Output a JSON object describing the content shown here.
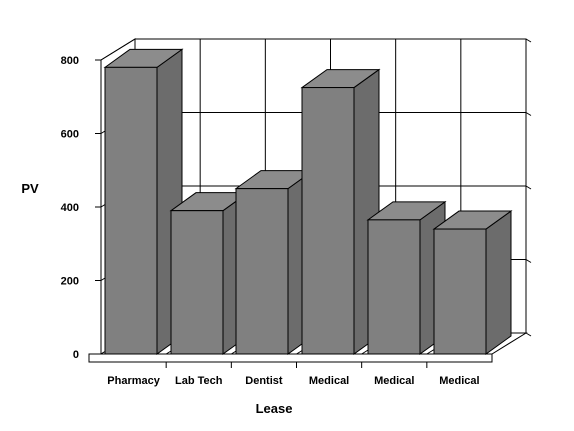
{
  "chart_data": {
    "type": "bar",
    "style": "3d",
    "title": "",
    "xlabel": "Lease",
    "ylabel": "PV",
    "ylim": [
      0,
      800
    ],
    "yticks": [
      0,
      200,
      400,
      600,
      800
    ],
    "grid": true,
    "legend": "none",
    "categories": [
      "Pharmacy",
      "Lab Tech",
      "Dentist",
      "Medical",
      "Medical",
      "Medical"
    ],
    "values": [
      780,
      390,
      450,
      725,
      365,
      340
    ],
    "colors": {
      "bar_front": "#808080",
      "bar_side": "#6c6c6c",
      "bar_top": "#8c8c8c",
      "outline": "#000000",
      "background": "#ffffff"
    }
  }
}
